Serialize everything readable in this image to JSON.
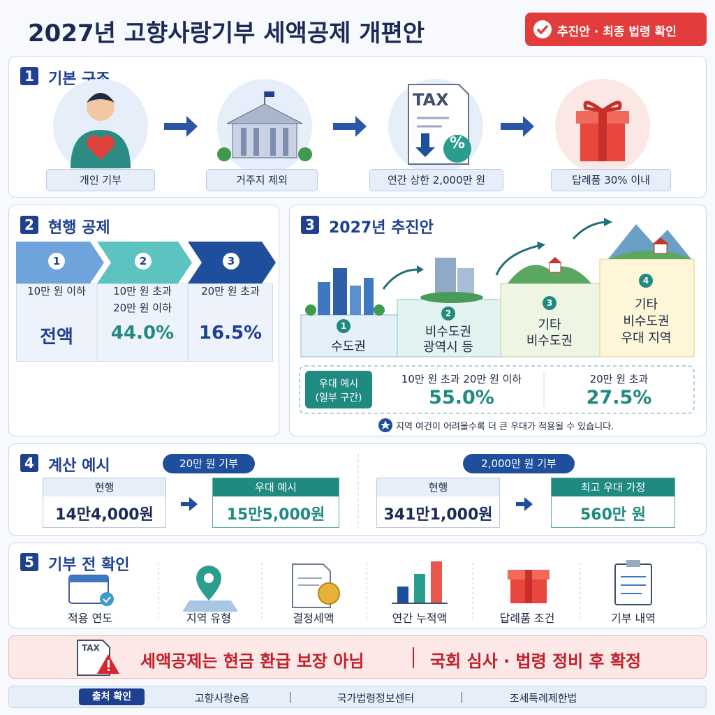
{
  "header": {
    "title": "2027년 고향사랑기부 세액공제 개편안",
    "badge": "추진안 · 최종 법령 확인"
  },
  "section1": {
    "number": "1",
    "title": "기본 구조",
    "tax_icon": "TAX",
    "percent_icon": "%",
    "steps": [
      "개인 기부",
      "거주지 제외",
      "연간 상한 2,000만 원",
      "답례품 30% 이내"
    ]
  },
  "section2": {
    "number": "2",
    "title": "현행 공제",
    "tiers": [
      {
        "number": "1",
        "range": [
          "10만 원 이하"
        ],
        "rate": "전액"
      },
      {
        "number": "2",
        "range": [
          "10만 원 초과",
          "20만 원 이하"
        ],
        "rate": "44.0%"
      },
      {
        "number": "3",
        "range": [
          "20만 원 초과"
        ],
        "rate": "16.5%"
      }
    ]
  },
  "section3": {
    "number": "3",
    "title": "2027년 추진안",
    "regions": [
      {
        "number": "1",
        "label": [
          "수도권"
        ]
      },
      {
        "number": "2",
        "label": [
          "비수도권",
          "광역시 등"
        ]
      },
      {
        "number": "3",
        "label": [
          "기타",
          "비수도권"
        ]
      },
      {
        "number": "4",
        "label": [
          "기타",
          "비수도권",
          "우대 지역"
        ]
      }
    ],
    "example": {
      "label": [
        "우대 예시",
        "(일부 구간)"
      ],
      "items": [
        {
          "range": "10만 원 초과 20만 원 이하",
          "rate": "55.0%"
        },
        {
          "range": "20만 원 초과",
          "rate": "27.5%"
        }
      ]
    },
    "note": "지역 여건이 어려울수록 더 큰 우대가 적용될 수 있습니다."
  },
  "section4": {
    "number": "4",
    "title": "계산 예시",
    "examples": [
      {
        "donation": "20만 원 기부",
        "before": {
          "label": "현행",
          "amount": "14만4,000원"
        },
        "after": {
          "label": "우대 예시",
          "amount": "15만5,000원"
        }
      },
      {
        "donation": "2,000만 원 기부",
        "before": {
          "label": "현행",
          "amount": "341만1,000원"
        },
        "after": {
          "label": "최고 우대 가정",
          "amount": "560만 원"
        }
      }
    ]
  },
  "section5": {
    "number": "5",
    "title": "기부 전 확인",
    "items": [
      "적용 연도",
      "지역 유형",
      "결정세액",
      "연간 누적액",
      "답례품 조건",
      "기부 내역"
    ]
  },
  "warning": {
    "icon_text": "TAX",
    "parts": [
      "세액공제는 현금 환급 보장 아님",
      "국회 심사 · 법령 정비 후 확정"
    ]
  },
  "sources": {
    "label": "출처 확인",
    "items": [
      "고향사랑e음",
      "국가법령정보센터",
      "조세특례제한법"
    ]
  }
}
